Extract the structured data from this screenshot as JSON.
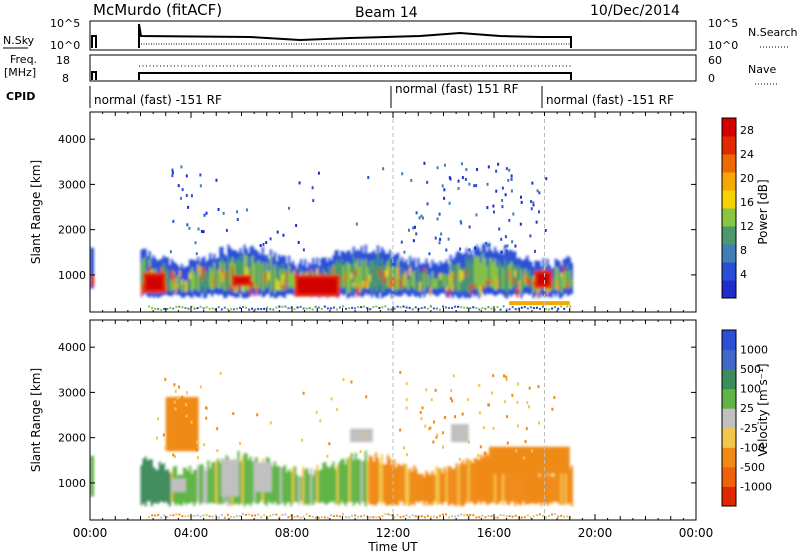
{
  "header": {
    "station": "McMurdo (fitACF)",
    "beam": "Beam 14",
    "date": "10/Dec/2014"
  },
  "params_panel": {
    "nsky_label": "N.Sky",
    "nsearch_label": "N.Search",
    "freq_label": "Freq.",
    "freq_unit": "[MHz]",
    "nave_label": "Nave",
    "cpid_label": "CPID",
    "left_ticks_top": [
      "10^5",
      "10^0"
    ],
    "right_ticks_top": [
      "10^5",
      "10^0"
    ],
    "left_ticks_freq": [
      "18",
      "8"
    ],
    "right_ticks_nave": [
      "60",
      "0"
    ]
  },
  "cpid_segments": [
    {
      "label": "normal (fast) -151 RF",
      "start_hour": 0.0
    },
    {
      "label": "normal (fast) 151 RF",
      "start_hour": 12.0
    },
    {
      "label": "normal (fast) -151 RF",
      "start_hour": 18.0
    }
  ],
  "colors": {
    "power": [
      "#1f2ccc",
      "#2a4fd6",
      "#3f7fb6",
      "#4c9a6a",
      "#88c540",
      "#f5d200",
      "#f5a800",
      "#ee6a00",
      "#e22a00",
      "#d40000"
    ],
    "velocity": [
      "#2b4fd6",
      "#3f68c8",
      "#3c8c5c",
      "#60b546",
      "#c0c0c0",
      "#f3c64a",
      "#f08a14",
      "#f0620a",
      "#e02800"
    ],
    "grid": "#bbbbbb"
  },
  "chart_data": [
    {
      "type": "heatmap",
      "title": "",
      "xlabel": "Time UT",
      "ylabel": "Slant Range [km]",
      "xlim": [
        0,
        24
      ],
      "ylim": [
        180,
        4600
      ],
      "x_ticks": [
        "00:00",
        "04:00",
        "08:00",
        "12:00",
        "16:00",
        "20:00",
        "00:00"
      ],
      "x_tick_hours": [
        0,
        4,
        8,
        12,
        16,
        20,
        24
      ],
      "y_ticks": [
        1000,
        2000,
        3000,
        4000
      ],
      "colorbar": {
        "label": "Power [dB]",
        "ticks": [
          "4",
          "8",
          "12",
          "16",
          "20",
          "24",
          "28"
        ],
        "range": [
          0,
          30
        ]
      },
      "data_present_hours": [
        [
          0.0,
          0.2
        ],
        [
          2.0,
          19.1
        ]
      ],
      "features": [
        {
          "name": "main echo band",
          "hours": [
            2.0,
            19.1
          ],
          "range_km": [
            500,
            1600
          ],
          "peak_power_db": 30
        },
        {
          "name": "strong patch",
          "hours": [
            8.0,
            10.0
          ],
          "range_km": [
            500,
            1000
          ],
          "peak_power_db": 30
        },
        {
          "name": "upper scatter",
          "hours": [
            3.0,
            4.5
          ],
          "range_km": [
            1800,
            3000
          ],
          "peak_power_db": 8
        },
        {
          "name": "mid patches",
          "hours": [
            12.5,
            17.5
          ],
          "range_km": [
            1600,
            2700
          ],
          "peak_power_db": 10
        }
      ]
    },
    {
      "type": "heatmap",
      "title": "",
      "xlabel": "Time UT",
      "ylabel": "Slant Range [km]",
      "xlim": [
        0,
        24
      ],
      "ylim": [
        180,
        4600
      ],
      "x_ticks": [
        "00:00",
        "04:00",
        "08:00",
        "12:00",
        "16:00",
        "20:00",
        "00:00"
      ],
      "x_tick_hours": [
        0,
        4,
        8,
        12,
        16,
        20,
        24
      ],
      "y_ticks": [
        1000,
        2000,
        3000,
        4000
      ],
      "colorbar": {
        "label": "Velocity [m s⁻¹]",
        "ticks": [
          "1000",
          "500",
          "100",
          "25",
          "-25",
          "-100",
          "-500",
          "-1000"
        ],
        "range": [
          -1000,
          1000
        ]
      },
      "features": [
        {
          "name": "green positive velocities",
          "hours": [
            2.0,
            10.5
          ],
          "range_km": [
            600,
            1600
          ],
          "velocity_ms": 100
        },
        {
          "name": "orange negative velocities",
          "hours": [
            12.0,
            19.1
          ],
          "range_km": [
            500,
            1800
          ],
          "velocity_ms": -200
        }
      ]
    }
  ]
}
